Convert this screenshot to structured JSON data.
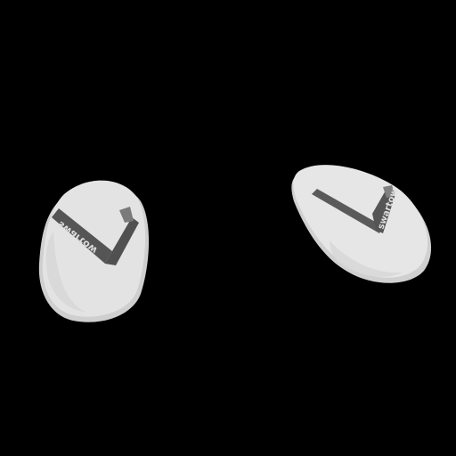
{
  "scene": {
    "background_color": "#000000",
    "objects": [
      {
        "name": "left-flip-flop",
        "sole_color": "#e3e3e3",
        "sole_edge_color": "#cfcfcf",
        "strap_color": "#555555",
        "strap_highlight_color": "#7a7a7a",
        "brand_text": "swartow"
      },
      {
        "name": "right-flip-flop",
        "sole_color": "#e6e6e6",
        "sole_edge_color": "#d0d0d0",
        "strap_color": "#5a5a5a",
        "strap_highlight_color": "#808080",
        "brand_text": "swartow"
      }
    ]
  }
}
